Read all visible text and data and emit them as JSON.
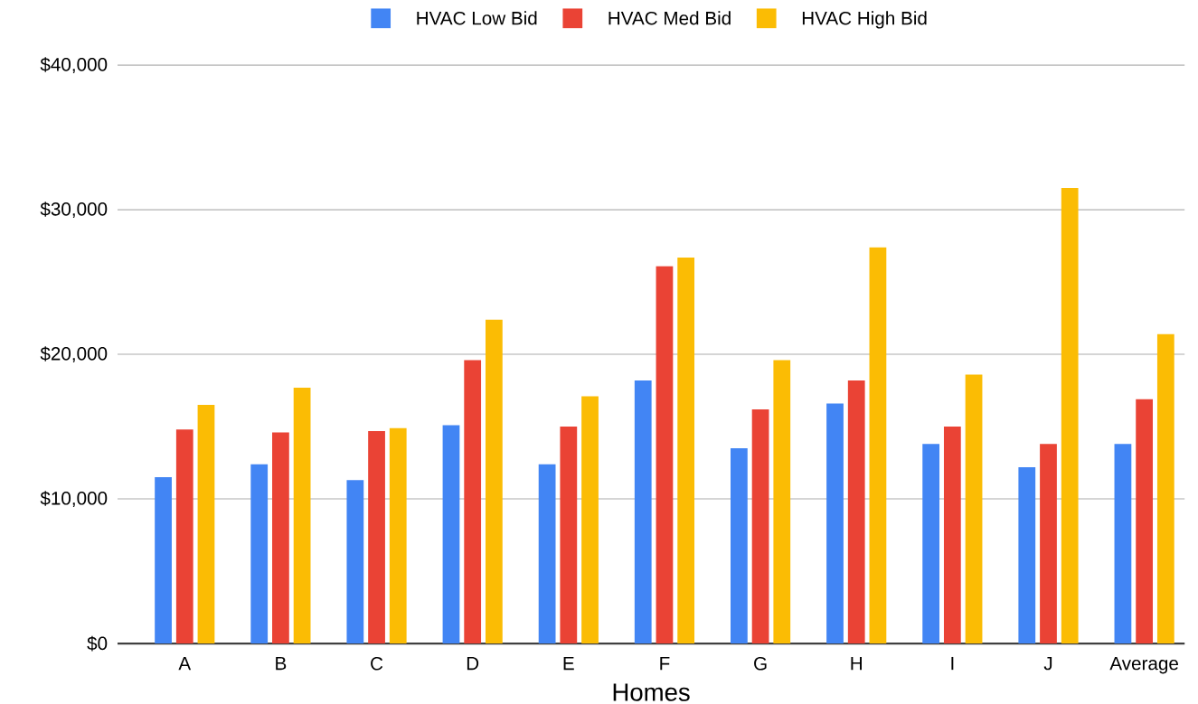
{
  "chart_data": {
    "type": "bar",
    "xlabel": "Homes",
    "categories": [
      "A",
      "B",
      "C",
      "D",
      "E",
      "F",
      "G",
      "H",
      "I",
      "J",
      "Average"
    ],
    "series": [
      {
        "name": "HVAC Low Bid",
        "color": "#4285f4",
        "values": [
          11500,
          12400,
          11300,
          15100,
          12400,
          18200,
          13500,
          16600,
          13800,
          12200,
          13800
        ]
      },
      {
        "name": "HVAC Med Bid",
        "color": "#ea4335",
        "values": [
          14800,
          14600,
          14700,
          19600,
          15000,
          26100,
          16200,
          18200,
          15000,
          13800,
          16900
        ]
      },
      {
        "name": "HVAC High Bid",
        "color": "#fbbc04",
        "values": [
          16500,
          17700,
          14900,
          22400,
          17100,
          26700,
          19600,
          27400,
          18600,
          31500,
          21400
        ]
      }
    ],
    "ylim": [
      0,
      40000
    ],
    "yticks": [
      {
        "value": 0,
        "label": "$0"
      },
      {
        "value": 10000,
        "label": "$10,000"
      },
      {
        "value": 20000,
        "label": "$20,000"
      },
      {
        "value": 30000,
        "label": "$30,000"
      },
      {
        "value": 40000,
        "label": "$40,000"
      }
    ],
    "grid": "y",
    "legend": "top"
  }
}
